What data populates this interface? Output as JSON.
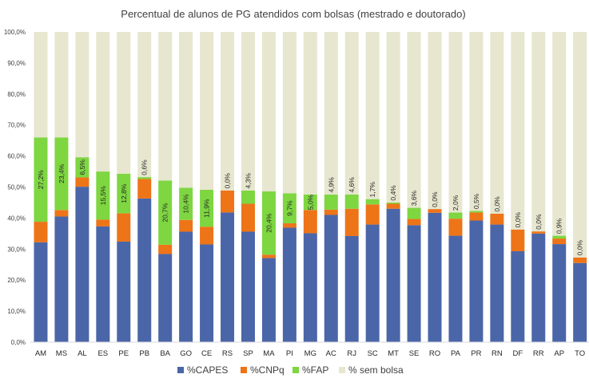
{
  "chart_data": {
    "type": "bar",
    "stacked": true,
    "title": "Percentual de alunos de PG atendidos com bolsas (mestrado e doutorado)",
    "xlabel": "",
    "ylabel": "",
    "ylim": [
      0,
      100
    ],
    "y_ticks": [
      "0,0%",
      "10,0%",
      "20,0%",
      "30,0%",
      "40,0%",
      "50,0%",
      "60,0%",
      "70,0%",
      "80,0%",
      "90,0%",
      "100,0%"
    ],
    "grid": false,
    "legend_position": "bottom",
    "categories": [
      "AM",
      "MS",
      "AL",
      "ES",
      "PE",
      "PB",
      "BA",
      "GO",
      "CE",
      "RS",
      "SP",
      "MA",
      "PI",
      "MG",
      "AC",
      "RJ",
      "SC",
      "MT",
      "SE",
      "RO",
      "PA",
      "PR",
      "RN",
      "DF",
      "RR",
      "AP",
      "TO"
    ],
    "series": [
      {
        "name": "%CAPES",
        "color": "#4A66A8",
        "values": [
          32.2,
          40.5,
          50.1,
          37.3,
          32.4,
          46.3,
          28.4,
          35.6,
          31.5,
          41.8,
          35.6,
          27.1,
          36.9,
          35.1,
          41.0,
          34.2,
          37.9,
          43.0,
          37.7,
          41.7,
          34.3,
          39.2,
          37.9,
          29.3,
          35.0,
          31.6,
          25.5
        ]
      },
      {
        "name": "%CNPq",
        "color": "#EE7418",
        "values": [
          6.6,
          2.1,
          3.0,
          2.2,
          9.1,
          6.3,
          3.0,
          3.8,
          5.7,
          7.1,
          9.0,
          1.1,
          1.4,
          7.5,
          1.7,
          8.8,
          6.5,
          1.6,
          2.0,
          1.2,
          5.5,
          2.6,
          3.5,
          7.0,
          0.7,
          1.8,
          1.8
        ]
      },
      {
        "name": "%FAP",
        "color": "#7ED641",
        "values": [
          27.2,
          23.4,
          6.5,
          15.5,
          12.8,
          0.6,
          20.7,
          10.4,
          11.9,
          0.0,
          4.3,
          20.4,
          9.7,
          5.0,
          4.9,
          4.6,
          1.7,
          0.4,
          3.6,
          0.0,
          2.0,
          0.5,
          0.0,
          0.0,
          0.0,
          0.9,
          0.0
        ]
      },
      {
        "name": "% sem bolsa",
        "color": "#E7E6CF",
        "values": [
          34.0,
          34.0,
          40.4,
          45.0,
          45.7,
          46.8,
          47.9,
          50.2,
          50.9,
          51.1,
          51.1,
          51.4,
          52.0,
          52.4,
          52.4,
          52.4,
          53.9,
          55.0,
          56.7,
          57.1,
          58.2,
          57.7,
          58.6,
          63.7,
          64.3,
          65.7,
          72.7
        ]
      }
    ],
    "fap_labels": [
      "27,2%",
      "23,4%",
      "6,5%",
      "15,5%",
      "12,8%",
      "0,6%",
      "20,7%",
      "10,4%",
      "11,9%",
      "0,0%",
      "4,3%",
      "20,4%",
      "9,7%",
      "5,0%",
      "4,9%",
      "4,6%",
      "1,7%",
      "0,4%",
      "3,6%",
      "0,0%",
      "2,0%",
      "0,5%",
      "0,0%",
      "0,0%",
      "0,0%",
      "0,9%",
      "0,0%"
    ]
  }
}
